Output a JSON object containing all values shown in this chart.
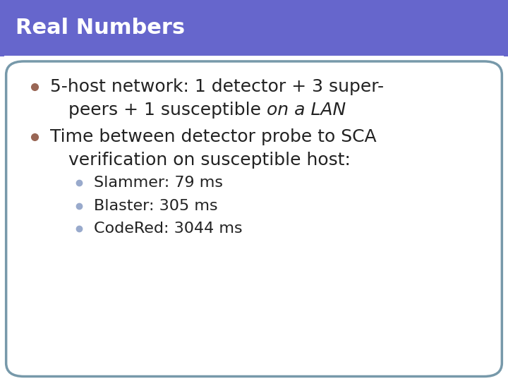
{
  "title": "Real Numbers",
  "title_bg_color": "#6666cc",
  "title_text_color": "#ffffff",
  "title_font_size": 22,
  "body_bg_color": "#ffffff",
  "border_color": "#7799aa",
  "bullet_color_main": "#996655",
  "bullet_color_sub": "#99aacc",
  "line1a": "5-host network: 1 detector + 3 super-",
  "line1b_normal": "peers + 1 susceptible ",
  "line1b_italic": "on a LAN",
  "line2a": "Time between detector probe to SCA",
  "line2b": "verification on susceptible host:",
  "sub_bullets": [
    "Slammer: 79 ms",
    "Blaster: 305 ms",
    "CodeRed: 3044 ms"
  ],
  "main_font_size": 18,
  "sub_font_size": 16,
  "text_color": "#222222"
}
